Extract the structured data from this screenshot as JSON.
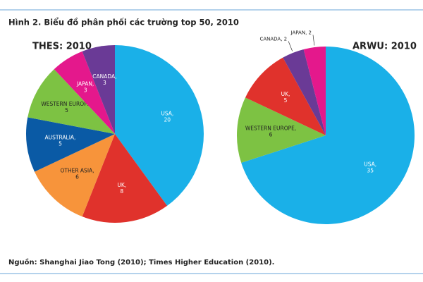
{
  "title": "Hình 2. Biểu đồ phân phối các trường top 50, 2010",
  "source": "Nguồn: Shanghai Jiao Tong (2010); Times Higher Education  (2010).",
  "chart_data": [
    {
      "type": "pie",
      "title": "THES: 2010",
      "values": [
        20,
        8,
        6,
        5,
        5,
        3,
        3
      ],
      "value_labels": [
        "USA, 20",
        "UK, 8",
        "OTHER ASIA, 6",
        "AUSTRALIA, 5",
        "WESTERN EUROPE, 5",
        "JAPAN, 3",
        "CANADA, 3"
      ],
      "colors": [
        "#1ab0e8",
        "#e0322c",
        "#f7943b",
        "#0a5aa5",
        "#7dc243",
        "#e4188c",
        "#6a3a96"
      ]
    },
    {
      "type": "pie",
      "title": "ARWU: 2010",
      "values": [
        35,
        6,
        5,
        2,
        2
      ],
      "value_labels": [
        "USA, 35",
        "WESTERN EUROPE, 6",
        "UK, 5",
        "CANADA, 2",
        "JAPAN, 2"
      ],
      "colors": [
        "#1ab0e8",
        "#7dc243",
        "#e0322c",
        "#6a3a96",
        "#e4188c"
      ]
    }
  ]
}
